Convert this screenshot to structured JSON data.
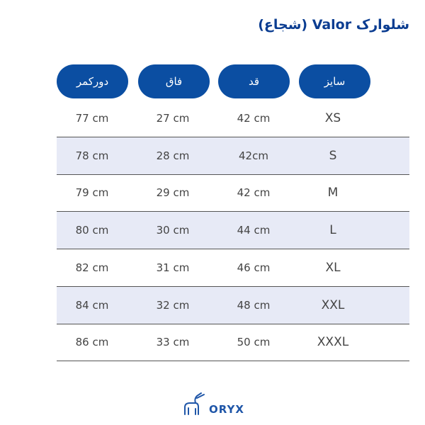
{
  "title": "شلوارک Valor (شجاع)",
  "headers": [
    "سایز",
    "قد",
    "فاق",
    "دورکمر"
  ],
  "rows": [
    {
      "size": "XS",
      "height": "42 cm",
      "rise": "27 cm",
      "waist": "77 cm"
    },
    {
      "size": "S",
      "height": "42cm",
      "rise": "28 cm",
      "waist": "78 cm"
    },
    {
      "size": "M",
      "height": "42 cm",
      "rise": "29 cm",
      "waist": "79 cm"
    },
    {
      "size": "L",
      "height": "44 cm",
      "rise": "30 cm",
      "waist": "80 cm"
    },
    {
      "size": "XL",
      "height": "46 cm",
      "rise": "31 cm",
      "waist": "82 cm"
    },
    {
      "size": "XXL",
      "height": "48 cm",
      "rise": "32 cm",
      "waist": "84 cm"
    },
    {
      "size": "XXXL",
      "height": "50 cm",
      "rise": "33 cm",
      "waist": "86 cm"
    }
  ],
  "brand": {
    "name": "ORYX",
    "icon": "oryx-antelope-logo",
    "color": "#1f56a8"
  },
  "colors": {
    "header": "#0b4ea2",
    "alt_row": "#e7eaf6",
    "title": "#0b3d91"
  }
}
